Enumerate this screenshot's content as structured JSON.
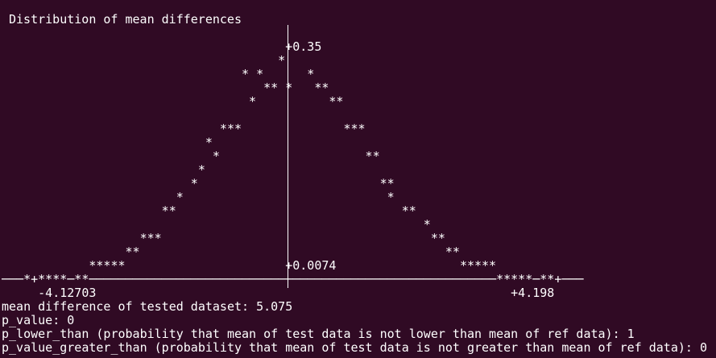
{
  "terminal": {
    "title": "Distribution of mean differences",
    "plot": "                                       +0.35\n                                      *\n                                 * *      *\n                                    ** *   **\n                                  *          **\n\n                              ***              ***\n                            *\n                             *                    **\n                           *\n                          *                         **\n                        *                            *\n                      **                               **\n                                                          *\n                   ***                                     **\n                 **                                          **\n            *****                      +0.0074                 *****\n───*+****─**────────────────────────────────────────────────────────*****─**+───\n     -4.12703                                                         +4.198",
    "output": [
      "mean difference of tested dataset: 5.075",
      "p_value: 0",
      "p_lower_than (probability that mean of test data is not lower than mean of ref data): 1",
      "p_value_greater_than (probability that mean of test data is not greater than mean of ref data): 0"
    ]
  }
}
